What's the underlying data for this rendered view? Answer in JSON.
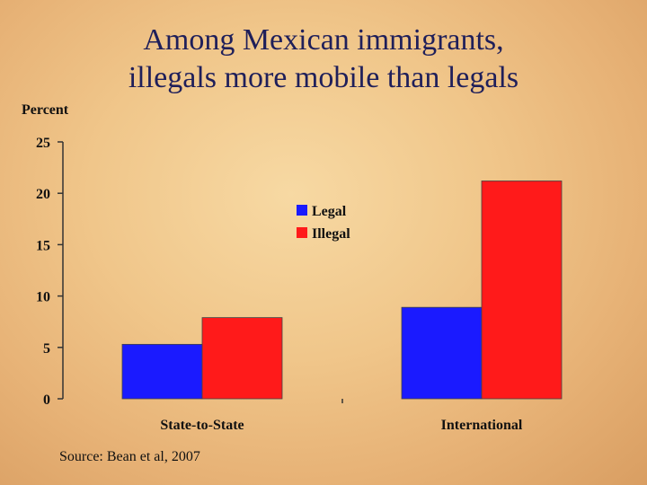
{
  "title_line1": "Among Mexican immigrants,",
  "title_line2": "illegals more mobile than legals",
  "ylabel": "Percent",
  "source": "Source: Bean et al, 2007",
  "chart_data": {
    "type": "bar",
    "categories": [
      "State-to-State",
      "International"
    ],
    "series": [
      {
        "name": "Legal",
        "values": [
          5.3,
          8.9
        ],
        "color": "#1a1aff"
      },
      {
        "name": "Illegal",
        "values": [
          7.9,
          21.2
        ],
        "color": "#ff1a1a"
      }
    ],
    "ylim": [
      0,
      25
    ],
    "yticks": [
      0,
      5,
      10,
      15,
      20,
      25
    ],
    "grid": false,
    "legend": "center"
  }
}
